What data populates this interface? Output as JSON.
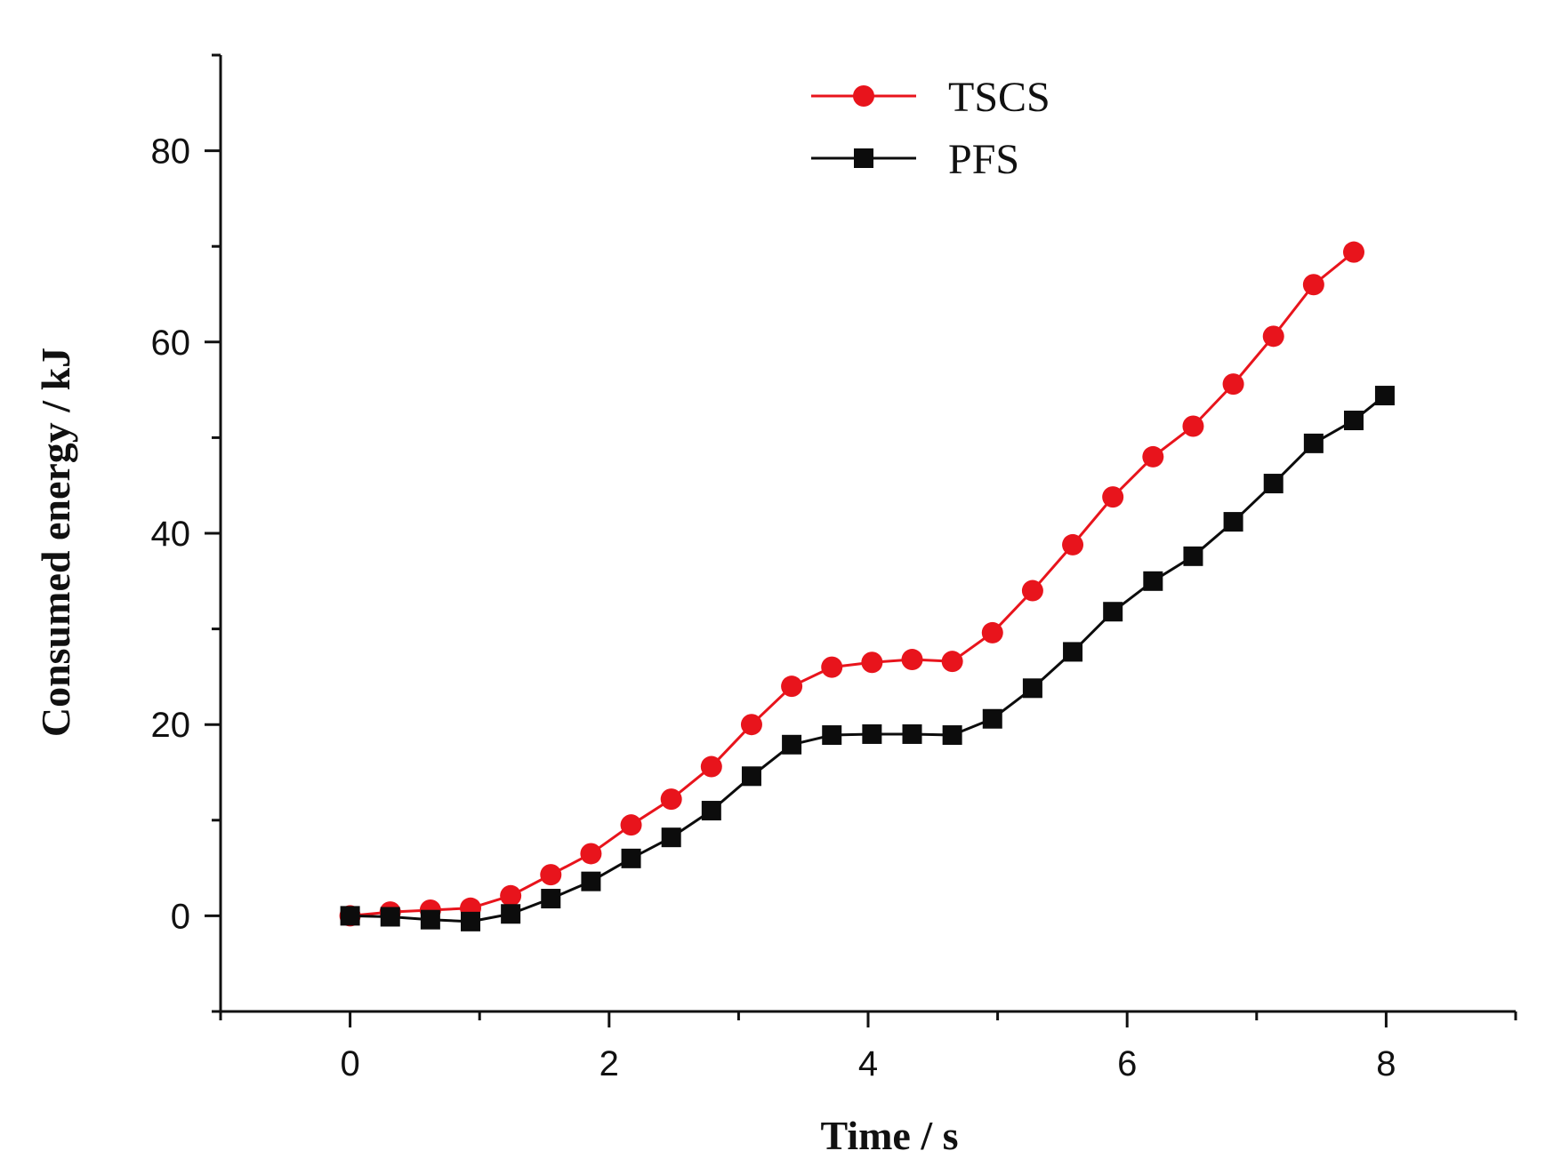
{
  "chart_data": {
    "type": "line",
    "title": "",
    "xlabel": "Time / s",
    "ylabel": "Consumed energy  / kJ",
    "xlim": [
      -1,
      9
    ],
    "ylim": [
      -10,
      90
    ],
    "xticks": [
      0,
      2,
      4,
      6,
      8
    ],
    "yticks": [
      0,
      20,
      40,
      60,
      80
    ],
    "xtick_labels": [
      "0",
      "2",
      "4",
      "6",
      "8"
    ],
    "ytick_labels": [
      "0",
      "20",
      "40",
      "60",
      "80"
    ],
    "x_minor_step": 1,
    "y_minor_step": 10,
    "legend_position": "top-center",
    "series": [
      {
        "name": "TSCS",
        "color": "#e8141c",
        "marker": "circle",
        "x": [
          0,
          0.31,
          0.62,
          0.93,
          1.24,
          1.55,
          1.86,
          2.17,
          2.48,
          2.79,
          3.1,
          3.41,
          3.72,
          4.03,
          4.34,
          4.65,
          4.96,
          5.27,
          5.58,
          5.89,
          6.2,
          6.51,
          6.82,
          7.13,
          7.44,
          7.75
        ],
        "y": [
          0,
          0.4,
          0.6,
          0.8,
          2.1,
          4.3,
          6.5,
          9.5,
          12.2,
          15.6,
          20.0,
          24.0,
          26.0,
          26.5,
          26.8,
          26.6,
          29.6,
          34.0,
          38.8,
          43.8,
          48.0,
          51.2,
          55.6,
          60.6,
          66.0,
          69.4
        ],
        "line_end": [
          7.75,
          70.5
        ]
      },
      {
        "name": "PFS",
        "color": "#0c0c0c",
        "marker": "square",
        "x": [
          0,
          0.31,
          0.62,
          0.93,
          1.24,
          1.55,
          1.86,
          2.17,
          2.48,
          2.79,
          3.1,
          3.41,
          3.72,
          4.03,
          4.34,
          4.65,
          4.96,
          5.27,
          5.58,
          5.89,
          6.2,
          6.51,
          6.82,
          7.13,
          7.44,
          7.75,
          7.99
        ],
        "y": [
          0,
          -0.1,
          -0.4,
          -0.6,
          0.2,
          1.8,
          3.6,
          6.0,
          8.2,
          11.0,
          14.6,
          17.9,
          18.9,
          19.0,
          19.0,
          18.9,
          20.6,
          23.8,
          27.6,
          31.8,
          35.0,
          37.6,
          41.2,
          45.2,
          49.4,
          51.8,
          54.4
        ],
        "line_end": [
          8.05,
          55.0
        ]
      }
    ]
  }
}
